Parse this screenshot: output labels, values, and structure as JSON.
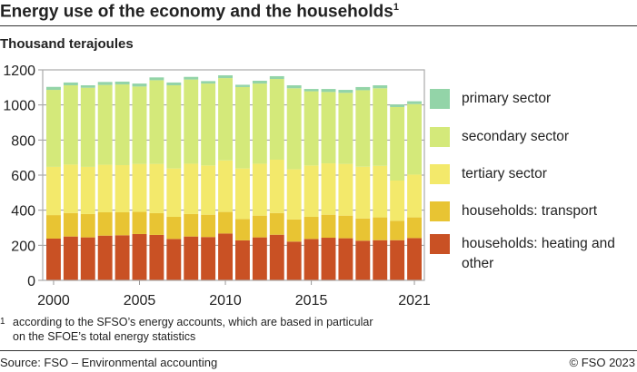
{
  "title": "Energy use of the economy and the households",
  "title_marker": "1",
  "unit_label": "Thousand terajoules",
  "footnote": {
    "marker": "1",
    "text_line1": "according to the SFSO’s energy accounts, which are based in particular",
    "text_line2": "on the SFOE’s total energy statistics"
  },
  "source": "Source: FSO – Environmental accounting",
  "copyright": "© FSO 2023",
  "chart_data": {
    "type": "bar",
    "stacked": true,
    "ylabel": "Thousand terajoules",
    "ylim": [
      0,
      1200
    ],
    "yticks": [
      0,
      200,
      400,
      600,
      800,
      1000,
      1200
    ],
    "xtick_labels": [
      "2000",
      "2005",
      "2010",
      "2015",
      "2021"
    ],
    "grid": true,
    "legend_position": "right",
    "categories": [
      "2000",
      "2001",
      "2002",
      "2003",
      "2004",
      "2005",
      "2006",
      "2007",
      "2008",
      "2009",
      "2010",
      "2011",
      "2012",
      "2013",
      "2014",
      "2015",
      "2016",
      "2017",
      "2018",
      "2019",
      "2020",
      "2021"
    ],
    "series": [
      {
        "name": "households: heating and other",
        "color": "#c95124",
        "values": [
          238,
          250,
          245,
          255,
          257,
          264,
          259,
          236,
          250,
          247,
          267,
          228,
          245,
          260,
          221,
          236,
          243,
          240,
          226,
          229,
          229,
          241
        ]
      },
      {
        "name": "households: transport",
        "color": "#e8c433",
        "values": [
          134,
          134,
          133,
          133,
          131,
          127,
          124,
          126,
          128,
          127,
          123,
          122,
          124,
          124,
          126,
          126,
          131,
          129,
          127,
          130,
          111,
          118
        ]
      },
      {
        "name": "tertiary sector",
        "color": "#f3e96b",
        "values": [
          275,
          276,
          269,
          271,
          269,
          273,
          281,
          276,
          287,
          281,
          294,
          288,
          296,
          304,
          286,
          293,
          293,
          295,
          295,
          294,
          229,
          244
        ]
      },
      {
        "name": "secondary sector",
        "color": "#d4e97a",
        "values": [
          439,
          452,
          451,
          455,
          460,
          441,
          477,
          474,
          480,
          467,
          469,
          464,
          457,
          460,
          462,
          423,
          407,
          405,
          436,
          442,
          419,
          402
        ]
      },
      {
        "name": "primary sector",
        "color": "#93d4a8",
        "values": [
          17,
          16,
          14,
          17,
          16,
          17,
          16,
          16,
          15,
          14,
          16,
          13,
          16,
          16,
          17,
          13,
          17,
          17,
          18,
          17,
          15,
          16
        ]
      }
    ]
  }
}
